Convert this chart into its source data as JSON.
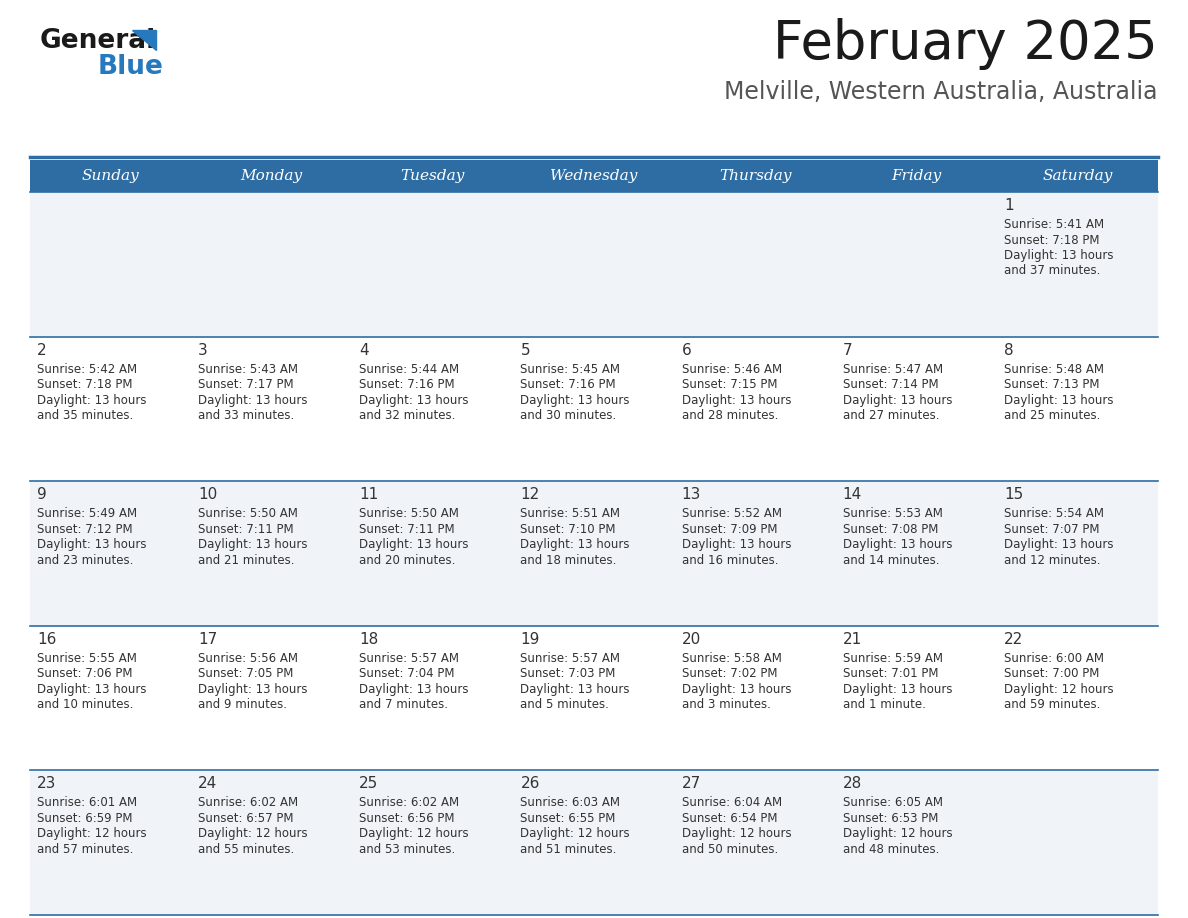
{
  "title": "February 2025",
  "subtitle": "Melville, Western Australia, Australia",
  "header_bg": "#2E6DA4",
  "header_text_color": "#FFFFFF",
  "cell_bg_odd": "#F0F4F8",
  "cell_bg_even": "#FFFFFF",
  "cell_border_color": "#2E6DA4",
  "day_headers": [
    "Sunday",
    "Monday",
    "Tuesday",
    "Wednesday",
    "Thursday",
    "Friday",
    "Saturday"
  ],
  "calendar": [
    [
      null,
      null,
      null,
      null,
      null,
      null,
      {
        "day": "1",
        "sunrise": "5:41 AM",
        "sunset": "7:18 PM",
        "daylight1": "Daylight: 13 hours",
        "daylight2": "and 37 minutes."
      }
    ],
    [
      {
        "day": "2",
        "sunrise": "5:42 AM",
        "sunset": "7:18 PM",
        "daylight1": "Daylight: 13 hours",
        "daylight2": "and 35 minutes."
      },
      {
        "day": "3",
        "sunrise": "5:43 AM",
        "sunset": "7:17 PM",
        "daylight1": "Daylight: 13 hours",
        "daylight2": "and 33 minutes."
      },
      {
        "day": "4",
        "sunrise": "5:44 AM",
        "sunset": "7:16 PM",
        "daylight1": "Daylight: 13 hours",
        "daylight2": "and 32 minutes."
      },
      {
        "day": "5",
        "sunrise": "5:45 AM",
        "sunset": "7:16 PM",
        "daylight1": "Daylight: 13 hours",
        "daylight2": "and 30 minutes."
      },
      {
        "day": "6",
        "sunrise": "5:46 AM",
        "sunset": "7:15 PM",
        "daylight1": "Daylight: 13 hours",
        "daylight2": "and 28 minutes."
      },
      {
        "day": "7",
        "sunrise": "5:47 AM",
        "sunset": "7:14 PM",
        "daylight1": "Daylight: 13 hours",
        "daylight2": "and 27 minutes."
      },
      {
        "day": "8",
        "sunrise": "5:48 AM",
        "sunset": "7:13 PM",
        "daylight1": "Daylight: 13 hours",
        "daylight2": "and 25 minutes."
      }
    ],
    [
      {
        "day": "9",
        "sunrise": "5:49 AM",
        "sunset": "7:12 PM",
        "daylight1": "Daylight: 13 hours",
        "daylight2": "and 23 minutes."
      },
      {
        "day": "10",
        "sunrise": "5:50 AM",
        "sunset": "7:11 PM",
        "daylight1": "Daylight: 13 hours",
        "daylight2": "and 21 minutes."
      },
      {
        "day": "11",
        "sunrise": "5:50 AM",
        "sunset": "7:11 PM",
        "daylight1": "Daylight: 13 hours",
        "daylight2": "and 20 minutes."
      },
      {
        "day": "12",
        "sunrise": "5:51 AM",
        "sunset": "7:10 PM",
        "daylight1": "Daylight: 13 hours",
        "daylight2": "and 18 minutes."
      },
      {
        "day": "13",
        "sunrise": "5:52 AM",
        "sunset": "7:09 PM",
        "daylight1": "Daylight: 13 hours",
        "daylight2": "and 16 minutes."
      },
      {
        "day": "14",
        "sunrise": "5:53 AM",
        "sunset": "7:08 PM",
        "daylight1": "Daylight: 13 hours",
        "daylight2": "and 14 minutes."
      },
      {
        "day": "15",
        "sunrise": "5:54 AM",
        "sunset": "7:07 PM",
        "daylight1": "Daylight: 13 hours",
        "daylight2": "and 12 minutes."
      }
    ],
    [
      {
        "day": "16",
        "sunrise": "5:55 AM",
        "sunset": "7:06 PM",
        "daylight1": "Daylight: 13 hours",
        "daylight2": "and 10 minutes."
      },
      {
        "day": "17",
        "sunrise": "5:56 AM",
        "sunset": "7:05 PM",
        "daylight1": "Daylight: 13 hours",
        "daylight2": "and 9 minutes."
      },
      {
        "day": "18",
        "sunrise": "5:57 AM",
        "sunset": "7:04 PM",
        "daylight1": "Daylight: 13 hours",
        "daylight2": "and 7 minutes."
      },
      {
        "day": "19",
        "sunrise": "5:57 AM",
        "sunset": "7:03 PM",
        "daylight1": "Daylight: 13 hours",
        "daylight2": "and 5 minutes."
      },
      {
        "day": "20",
        "sunrise": "5:58 AM",
        "sunset": "7:02 PM",
        "daylight1": "Daylight: 13 hours",
        "daylight2": "and 3 minutes."
      },
      {
        "day": "21",
        "sunrise": "5:59 AM",
        "sunset": "7:01 PM",
        "daylight1": "Daylight: 13 hours",
        "daylight2": "and 1 minute."
      },
      {
        "day": "22",
        "sunrise": "6:00 AM",
        "sunset": "7:00 PM",
        "daylight1": "Daylight: 12 hours",
        "daylight2": "and 59 minutes."
      }
    ],
    [
      {
        "day": "23",
        "sunrise": "6:01 AM",
        "sunset": "6:59 PM",
        "daylight1": "Daylight: 12 hours",
        "daylight2": "and 57 minutes."
      },
      {
        "day": "24",
        "sunrise": "6:02 AM",
        "sunset": "6:57 PM",
        "daylight1": "Daylight: 12 hours",
        "daylight2": "and 55 minutes."
      },
      {
        "day": "25",
        "sunrise": "6:02 AM",
        "sunset": "6:56 PM",
        "daylight1": "Daylight: 12 hours",
        "daylight2": "and 53 minutes."
      },
      {
        "day": "26",
        "sunrise": "6:03 AM",
        "sunset": "6:55 PM",
        "daylight1": "Daylight: 12 hours",
        "daylight2": "and 51 minutes."
      },
      {
        "day": "27",
        "sunrise": "6:04 AM",
        "sunset": "6:54 PM",
        "daylight1": "Daylight: 12 hours",
        "daylight2": "and 50 minutes."
      },
      {
        "day": "28",
        "sunrise": "6:05 AM",
        "sunset": "6:53 PM",
        "daylight1": "Daylight: 12 hours",
        "daylight2": "and 48 minutes."
      },
      null
    ]
  ],
  "logo_color_general": "#1a1a1a",
  "logo_color_blue": "#2779BD",
  "title_fontsize": 38,
  "subtitle_fontsize": 17,
  "header_fontsize": 11,
  "day_num_fontsize": 11,
  "cell_text_fontsize": 8.5
}
